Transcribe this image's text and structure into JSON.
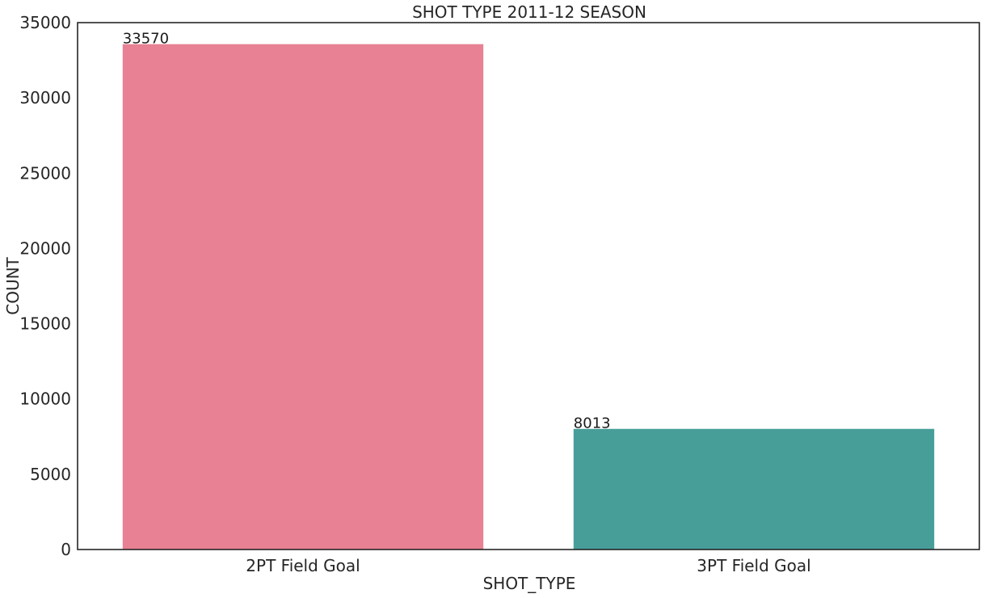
{
  "chart_data": {
    "type": "bar",
    "title": "SHOT TYPE 2011-12 SEASON",
    "xlabel": "SHOT_TYPE",
    "ylabel": "COUNT",
    "categories": [
      "2PT Field Goal",
      "3PT Field Goal"
    ],
    "values": [
      33570,
      8013
    ],
    "data_labels": [
      "33570",
      "8013"
    ],
    "colors": [
      "#e78193",
      "#479e99"
    ],
    "ylim": [
      0,
      35000
    ],
    "yticks": [
      0,
      5000,
      10000,
      15000,
      20000,
      25000,
      30000,
      35000
    ],
    "ytick_labels": [
      "0",
      "5000",
      "10000",
      "15000",
      "20000",
      "25000",
      "30000",
      "35000"
    ],
    "grid": false,
    "legend": "none"
  }
}
